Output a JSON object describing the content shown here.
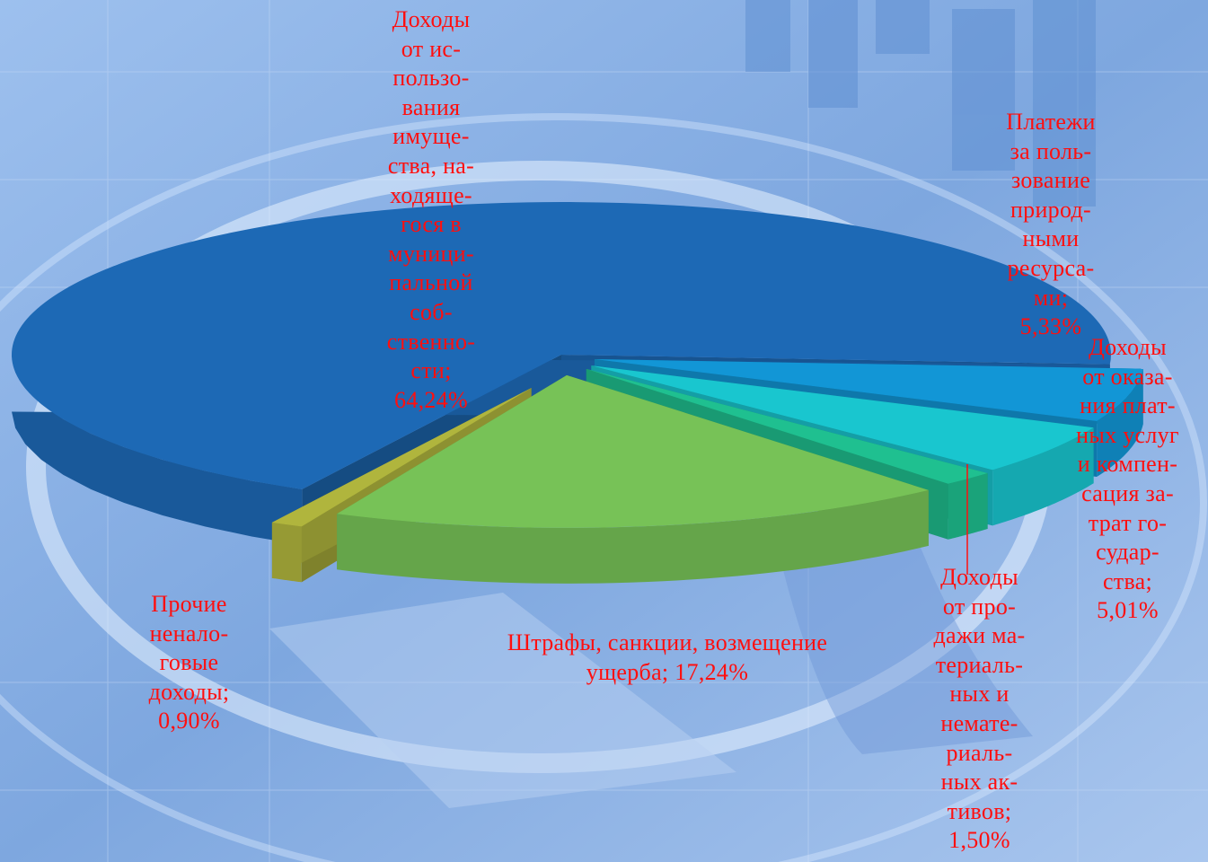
{
  "chart_data": {
    "type": "pie",
    "three_d": true,
    "exploded": true,
    "legend": "none",
    "slices": [
      {
        "label": "Доходы от использования имущества, находящегося в муниципальной собственности",
        "value": 64.24,
        "value_text": "64,24%",
        "color": "#1d69b5"
      },
      {
        "label": "Платежи за пользование природными ресурсами",
        "value": 5.33,
        "value_text": "5,33%",
        "color": "#1296d6"
      },
      {
        "label": "Доходы от оказания платных услуг и компенсация затрат государства",
        "value": 5.01,
        "value_text": "5,01%",
        "color": "#19c6cf"
      },
      {
        "label": "Доходы от продажи материальных и нематериальных активов",
        "value": 1.5,
        "value_text": "1,50%",
        "color": "#1fc090"
      },
      {
        "label": "Штрафы, санкции, возмещение ущерба",
        "value": 17.24,
        "value_text": "17,24%",
        "color": "#77c257"
      },
      {
        "label": "Прочие неналоговые доходы",
        "value": 0.9,
        "value_text": "0,90%",
        "color": "#b0b53d"
      }
    ]
  },
  "labels": {
    "l0": "Доходы\nот ис-\nпользо-\nвания\nимуще-\nства, на-\nходяще-\nгося в\nмуници-\nпальной\nсоб-\nственно-\nсти;\n64,24%",
    "l1": "Платежи\nза поль-\nзование\nприрод-\nными\nресурса-\nми;\n5,33%",
    "l2": "Доходы\nот оказа-\nния плат-\nных услуг\nи компен-\nсация за-\nтрат го-\nсудар-\nства;\n5,01%",
    "l3": "Доходы\nот про-\nдажи ма-\nтериаль-\nных и\nнемате-\nриаль-\nных ак-\nтивов;\n1,50%",
    "l4": "Штрафы, санкции, возмещение\nущерба; 17,24%",
    "l5": "Прочие\nненало-\nговые\nдоходы;\n0,90%"
  }
}
